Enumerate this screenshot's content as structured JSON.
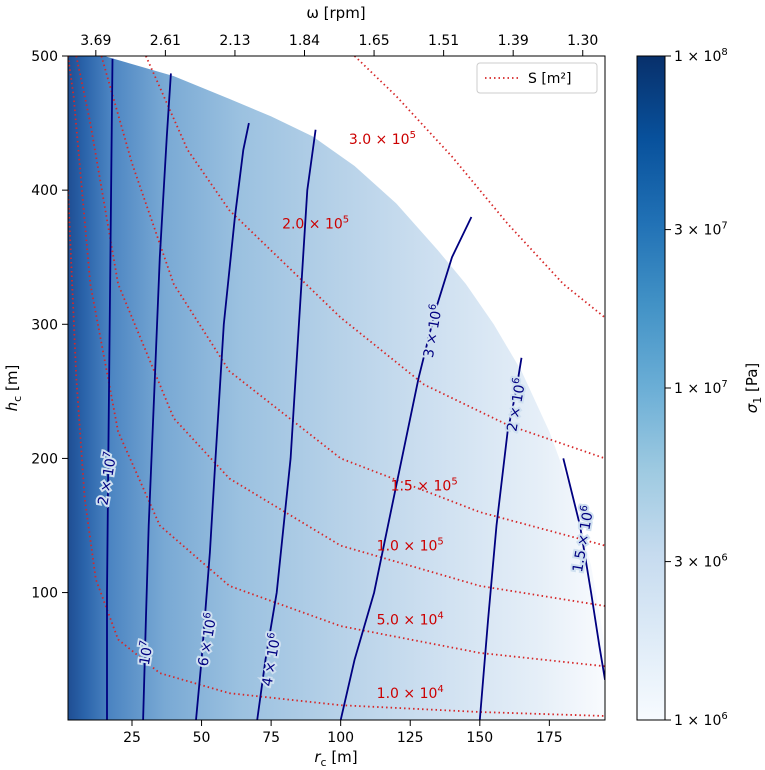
{
  "chart_data": {
    "type": "heatmap",
    "title": "",
    "xlabel": "r",
    "xlabel_sub": "c",
    "xlabel_unit": " [m]",
    "ylabel": "h",
    "ylabel_sub": "c",
    "ylabel_unit": " [m]",
    "top_axis_label": "ω [rpm]",
    "colorbar_label": "σ",
    "colorbar_label_sub": "1",
    "colorbar_label_unit": " [Pa]",
    "xlim": [
      2,
      195
    ],
    "ylim": [
      5,
      500
    ],
    "x_ticks": [
      25,
      50,
      75,
      100,
      125,
      150,
      175
    ],
    "x_tick_labels": [
      "25",
      "50",
      "75",
      "100",
      "125",
      "150",
      "175"
    ],
    "y_ticks": [
      100,
      200,
      300,
      400,
      500
    ],
    "y_tick_labels": [
      "100",
      "200",
      "300",
      "400",
      "500"
    ],
    "top_ticks": [
      12,
      37,
      62,
      87,
      112,
      137,
      162,
      187
    ],
    "top_tick_labels": [
      "3.69",
      "2.61",
      "2.13",
      "1.84",
      "1.65",
      "1.51",
      "1.39",
      "1.30"
    ],
    "colorbar_scale": "log",
    "colorbar_range": [
      1000000,
      100000000
    ],
    "colorbar_ticks": [
      {
        "value": 1000000,
        "mant": "1",
        "exp": "6"
      },
      {
        "value": 3000000,
        "mant": "3",
        "exp": "6"
      },
      {
        "value": 10000000,
        "mant": "1",
        "exp": "7"
      },
      {
        "value": 30000000,
        "mant": "3",
        "exp": "7"
      },
      {
        "value": 100000000,
        "mant": "1",
        "exp": "8"
      }
    ],
    "colormap": [
      "#f7fbff",
      "#deebf7",
      "#c6dbef",
      "#9ecae1",
      "#6baed6",
      "#4292c6",
      "#2171b5",
      "#08519c",
      "#08306b"
    ],
    "domain_boundary": [
      [
        2,
        500
      ],
      [
        15,
        500
      ],
      [
        40,
        485
      ],
      [
        60,
        468
      ],
      [
        75,
        455
      ],
      [
        90,
        440
      ],
      [
        105,
        418
      ],
      [
        120,
        390
      ],
      [
        135,
        355
      ],
      [
        145,
        330
      ],
      [
        155,
        300
      ],
      [
        165,
        265
      ],
      [
        175,
        220
      ],
      [
        183,
        175
      ],
      [
        190,
        120
      ],
      [
        195,
        60
      ],
      [
        195,
        5
      ]
    ],
    "stress_contours": [
      {
        "label_mant": "2",
        "label_exp": "7",
        "label_at": [
          16,
          185
        ],
        "color": "#000080",
        "points": [
          [
            16,
            5
          ],
          [
            16,
            100
          ],
          [
            16.5,
            200
          ],
          [
            17,
            300
          ],
          [
            17.5,
            400
          ],
          [
            18,
            498
          ]
        ]
      },
      {
        "label_mant": "",
        "label_exp": "7",
        "label_at": [
          30,
          55
        ],
        "color": "#000080",
        "points": [
          [
            29,
            5
          ],
          [
            30,
            80
          ],
          [
            31,
            150
          ],
          [
            33,
            250
          ],
          [
            35,
            350
          ],
          [
            37.5,
            440
          ],
          [
            39,
            487
          ]
        ]
      },
      {
        "label_mant": "6",
        "label_exp": "6",
        "label_at": [
          52,
          65
        ],
        "color": "#000080",
        "points": [
          [
            48,
            5
          ],
          [
            50,
            50
          ],
          [
            53,
            130
          ],
          [
            55,
            200
          ],
          [
            58,
            300
          ],
          [
            62,
            380
          ],
          [
            65,
            430
          ],
          [
            67,
            450
          ]
        ]
      },
      {
        "label_mant": "4",
        "label_exp": "6",
        "label_at": [
          75,
          50
        ],
        "color": "#000080",
        "points": [
          [
            70,
            5
          ],
          [
            73,
            50
          ],
          [
            77,
            100
          ],
          [
            82,
            200
          ],
          [
            85,
            300
          ],
          [
            88,
            400
          ],
          [
            91,
            445
          ]
        ]
      },
      {
        "label_mant": "3",
        "label_exp": "6",
        "label_at": [
          133,
          295
        ],
        "color": "#000080",
        "points": [
          [
            100,
            5
          ],
          [
            105,
            50
          ],
          [
            112,
            100
          ],
          [
            120,
            180
          ],
          [
            128,
            260
          ],
          [
            134,
            310
          ],
          [
            140,
            350
          ],
          [
            147,
            380
          ]
        ]
      },
      {
        "label_mant": "2",
        "label_exp": "6",
        "label_at": [
          163,
          240
        ],
        "color": "#000080",
        "points": [
          [
            150,
            5
          ],
          [
            153,
            80
          ],
          [
            156,
            150
          ],
          [
            160,
            220
          ],
          [
            163,
            250
          ],
          [
            165,
            275
          ]
        ]
      },
      {
        "label_mant": "1.5",
        "label_exp": "6",
        "label_at": [
          187,
          140
        ],
        "color": "#000080",
        "points": [
          [
            180,
            200
          ],
          [
            186,
            150
          ],
          [
            190,
            100
          ],
          [
            193,
            60
          ],
          [
            195,
            35
          ]
        ]
      }
    ],
    "area_series_name": "S [m²]",
    "area_contours": [
      {
        "label": "1.0 × 10⁴",
        "mant": "1.0",
        "exp": "4",
        "label_at": [
          125,
          25
        ],
        "points": [
          [
            2,
            400
          ],
          [
            5,
            260
          ],
          [
            8,
            170
          ],
          [
            12,
            110
          ],
          [
            20,
            65
          ],
          [
            35,
            40
          ],
          [
            60,
            25
          ],
          [
            100,
            16
          ],
          [
            150,
            11
          ],
          [
            195,
            8
          ]
        ]
      },
      {
        "label": "5.0 × 10⁴",
        "mant": "5.0",
        "exp": "4",
        "label_at": [
          125,
          80
        ],
        "points": [
          [
            2,
            500
          ],
          [
            4,
            470
          ],
          [
            10,
            330
          ],
          [
            20,
            220
          ],
          [
            35,
            150
          ],
          [
            60,
            105
          ],
          [
            100,
            75
          ],
          [
            150,
            55
          ],
          [
            195,
            45
          ]
        ]
      },
      {
        "label": "1.0 × 10⁵",
        "mant": "1.0",
        "exp": "5",
        "label_at": [
          125,
          135
        ],
        "points": [
          [
            5,
            500
          ],
          [
            10,
            450
          ],
          [
            20,
            330
          ],
          [
            40,
            230
          ],
          [
            60,
            185
          ],
          [
            100,
            135
          ],
          [
            150,
            105
          ],
          [
            195,
            90
          ]
        ]
      },
      {
        "label": "1.5 × 10⁵",
        "mant": "1.5",
        "exp": "5",
        "label_at": [
          130,
          180
        ],
        "points": [
          [
            14,
            500
          ],
          [
            25,
            420
          ],
          [
            40,
            330
          ],
          [
            60,
            265
          ],
          [
            100,
            200
          ],
          [
            150,
            160
          ],
          [
            195,
            135
          ]
        ]
      },
      {
        "label": "2.0 × 10⁵",
        "mant": "2.0",
        "exp": "5",
        "label_at": [
          91,
          375
        ],
        "points": [
          [
            30,
            500
          ],
          [
            45,
            430
          ],
          [
            60,
            385
          ],
          [
            80,
            345
          ],
          [
            100,
            305
          ],
          [
            130,
            255
          ],
          [
            160,
            225
          ],
          [
            195,
            200
          ]
        ]
      },
      {
        "label": "3.0 × 10⁵",
        "mant": "3.0",
        "exp": "5",
        "label_at": [
          115,
          438
        ],
        "points": [
          [
            105,
            500
          ],
          [
            120,
            470
          ],
          [
            140,
            425
          ],
          [
            160,
            375
          ],
          [
            180,
            330
          ],
          [
            195,
            305
          ]
        ]
      }
    ],
    "legend_placement": "top-right",
    "grid": false
  }
}
